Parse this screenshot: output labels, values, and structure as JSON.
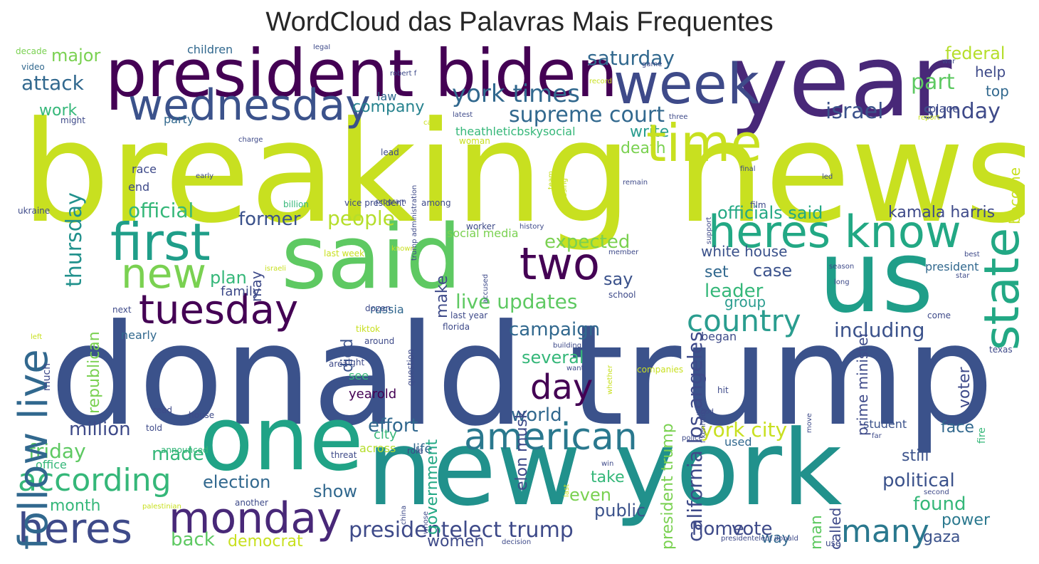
{
  "title": "WordCloud das Palavras Mais Frequentes",
  "palette": [
    "#440154",
    "#482878",
    "#3e4989",
    "#31688e",
    "#26828e",
    "#1f9e89",
    "#35b779",
    "#6ece58",
    "#b5de2b",
    "#fde725"
  ],
  "words": [
    {
      "text": "breaking news",
      "color": "#c8e020",
      "orientation": "horizontal"
    },
    {
      "text": "donald trump",
      "color": "#3b528b",
      "orientation": "horizontal"
    },
    {
      "text": "new york",
      "color": "#21918c",
      "orientation": "horizontal"
    },
    {
      "text": "year",
      "color": "#482878",
      "orientation": "horizontal"
    },
    {
      "text": "president biden",
      "color": "#440154",
      "orientation": "horizontal"
    },
    {
      "text": "said",
      "color": "#5ec962",
      "orientation": "horizontal"
    },
    {
      "text": "us",
      "color": "#1f9e89",
      "orientation": "horizontal"
    },
    {
      "text": "one",
      "color": "#20a386",
      "orientation": "horizontal"
    },
    {
      "text": "week",
      "color": "#3e4a89",
      "orientation": "horizontal"
    },
    {
      "text": "wednesday",
      "color": "#3b528b",
      "orientation": "horizontal"
    },
    {
      "text": "first",
      "color": "#1f9e89",
      "orientation": "horizontal"
    },
    {
      "text": "new",
      "color": "#7ad151",
      "orientation": "horizontal"
    },
    {
      "text": "tuesday",
      "color": "#440154",
      "orientation": "horizontal"
    },
    {
      "text": "two",
      "color": "#440154",
      "orientation": "horizontal"
    },
    {
      "text": "heres know",
      "color": "#22a884",
      "orientation": "horizontal"
    },
    {
      "text": "monday",
      "color": "#482878",
      "orientation": "horizontal"
    },
    {
      "text": "heres",
      "color": "#3e4a89",
      "orientation": "horizontal"
    },
    {
      "text": "american",
      "color": "#2a788e",
      "orientation": "horizontal"
    },
    {
      "text": "according",
      "color": "#35b779",
      "orientation": "horizontal"
    },
    {
      "text": "day",
      "color": "#440154",
      "orientation": "horizontal"
    },
    {
      "text": "country",
      "color": "#2a9d8f",
      "orientation": "horizontal"
    },
    {
      "text": "many",
      "color": "#2a788e",
      "orientation": "horizontal"
    },
    {
      "text": "york times",
      "color": "#31688e",
      "orientation": "horizontal"
    },
    {
      "text": "supreme court",
      "color": "#31688e",
      "orientation": "horizontal"
    },
    {
      "text": "israel",
      "color": "#3b528b",
      "orientation": "horizontal"
    },
    {
      "text": "sunday",
      "color": "#3e4a89",
      "orientation": "horizontal"
    },
    {
      "text": "saturday",
      "color": "#31688e",
      "orientation": "horizontal"
    },
    {
      "text": "attack",
      "color": "#31688e",
      "orientation": "horizontal"
    },
    {
      "text": "major",
      "color": "#7ad151",
      "orientation": "horizontal"
    },
    {
      "text": "federal",
      "color": "#b5de2b",
      "orientation": "horizontal"
    },
    {
      "text": "part",
      "color": "#5ec962",
      "orientation": "horizontal"
    },
    {
      "text": "help",
      "color": "#3e4a89",
      "orientation": "horizontal"
    },
    {
      "text": "top",
      "color": "#31688e",
      "orientation": "horizontal"
    },
    {
      "text": "company",
      "color": "#26828e",
      "orientation": "horizontal"
    },
    {
      "text": "work",
      "color": "#35b779",
      "orientation": "horizontal"
    },
    {
      "text": "write",
      "color": "#2a9d8f",
      "orientation": "horizontal"
    },
    {
      "text": "death",
      "color": "#7ad151",
      "orientation": "horizontal"
    },
    {
      "text": "former",
      "color": "#3b528b",
      "orientation": "horizontal"
    },
    {
      "text": "people",
      "color": "#b5de2b",
      "orientation": "horizontal"
    },
    {
      "text": "official",
      "color": "#35b779",
      "orientation": "horizontal"
    },
    {
      "text": "officials said",
      "color": "#22a884",
      "orientation": "horizontal"
    },
    {
      "text": "kamala harris",
      "color": "#3e4a89",
      "orientation": "horizontal"
    },
    {
      "text": "expected",
      "color": "#7ad151",
      "orientation": "horizontal"
    },
    {
      "text": "white house",
      "color": "#3b528b",
      "orientation": "horizontal"
    },
    {
      "text": "case",
      "color": "#3b528b",
      "orientation": "horizontal"
    },
    {
      "text": "set",
      "color": "#31688e",
      "orientation": "horizontal"
    },
    {
      "text": "leader",
      "color": "#35b779",
      "orientation": "horizontal"
    },
    {
      "text": "group",
      "color": "#2a9d8f",
      "orientation": "horizontal"
    },
    {
      "text": "say",
      "color": "#3b528b",
      "orientation": "horizontal"
    },
    {
      "text": "plan",
      "color": "#35b779",
      "orientation": "horizontal"
    },
    {
      "text": "family",
      "color": "#3e4a89",
      "orientation": "horizontal"
    },
    {
      "text": "live updates",
      "color": "#5ec962",
      "orientation": "horizontal"
    },
    {
      "text": "campaign",
      "color": "#31688e",
      "orientation": "horizontal"
    },
    {
      "text": "including",
      "color": "#3b528b",
      "orientation": "horizontal"
    },
    {
      "text": "several",
      "color": "#35b779",
      "orientation": "horizontal"
    },
    {
      "text": "world",
      "color": "#31688e",
      "orientation": "horizontal"
    },
    {
      "text": "million",
      "color": "#3e4a89",
      "orientation": "horizontal"
    },
    {
      "text": "effort",
      "color": "#31688e",
      "orientation": "horizontal"
    },
    {
      "text": "york city",
      "color": "#c8e020",
      "orientation": "horizontal"
    },
    {
      "text": "face",
      "color": "#31688e",
      "orientation": "horizontal"
    },
    {
      "text": "friday",
      "color": "#5ec962",
      "orientation": "horizontal"
    },
    {
      "text": "made",
      "color": "#35b779",
      "orientation": "horizontal"
    },
    {
      "text": "election",
      "color": "#31688e",
      "orientation": "horizontal"
    },
    {
      "text": "show",
      "color": "#31688e",
      "orientation": "horizontal"
    },
    {
      "text": "month",
      "color": "#35b779",
      "orientation": "horizontal"
    },
    {
      "text": "take",
      "color": "#35b779",
      "orientation": "horizontal"
    },
    {
      "text": "even",
      "color": "#7ad151",
      "orientation": "horizontal"
    },
    {
      "text": "public",
      "color": "#3b528b",
      "orientation": "horizontal"
    },
    {
      "text": "political",
      "color": "#3b528b",
      "orientation": "horizontal"
    },
    {
      "text": "found",
      "color": "#35b779",
      "orientation": "horizontal"
    },
    {
      "text": "still",
      "color": "#3b528b",
      "orientation": "horizontal"
    },
    {
      "text": "power",
      "color": "#2a788e",
      "orientation": "horizontal"
    },
    {
      "text": "gaza",
      "color": "#3b528b",
      "orientation": "horizontal"
    },
    {
      "text": "presidentelect trump",
      "color": "#3e4a89",
      "orientation": "horizontal"
    },
    {
      "text": "back",
      "color": "#5ec962",
      "orientation": "horizontal"
    },
    {
      "text": "democrat",
      "color": "#c8e020",
      "orientation": "horizontal"
    },
    {
      "text": "women",
      "color": "#3e4a89",
      "orientation": "horizontal"
    },
    {
      "text": "home",
      "color": "#3e4a89",
      "orientation": "horizontal"
    },
    {
      "text": "vote",
      "color": "#3e4a89",
      "orientation": "horizontal"
    },
    {
      "text": "way",
      "color": "#31688e",
      "orientation": "horizontal"
    },
    {
      "text": "end",
      "color": "#3e4a89",
      "orientation": "horizontal"
    },
    {
      "text": "race",
      "color": "#3e4a89",
      "orientation": "horizontal"
    },
    {
      "text": "party",
      "color": "#31688e",
      "orientation": "horizontal"
    },
    {
      "text": "social media",
      "color": "#7ad151",
      "orientation": "horizontal"
    },
    {
      "text": "yearold",
      "color": "#440154",
      "orientation": "horizontal"
    },
    {
      "text": "see",
      "color": "#35b779",
      "orientation": "horizontal"
    },
    {
      "text": "city",
      "color": "#35b779",
      "orientation": "horizontal"
    },
    {
      "text": "across",
      "color": "#b5de2b",
      "orientation": "horizontal"
    },
    {
      "text": "life",
      "color": "#31688e",
      "orientation": "horizontal"
    },
    {
      "text": "russia",
      "color": "#31688e",
      "orientation": "horizontal"
    },
    {
      "text": "office",
      "color": "#35b779",
      "orientation": "horizontal"
    },
    {
      "text": "nearly",
      "color": "#31688e",
      "orientation": "horizontal"
    },
    {
      "text": "theathleticbskysocial",
      "color": "#35b779",
      "orientation": "horizontal"
    },
    {
      "text": "law",
      "color": "#31688e",
      "orientation": "horizontal"
    },
    {
      "text": "children",
      "color": "#31688e",
      "orientation": "horizontal"
    },
    {
      "text": "student",
      "color": "#3b528b",
      "orientation": "horizontal"
    },
    {
      "text": "used",
      "color": "#31688e",
      "orientation": "horizontal"
    },
    {
      "text": "president",
      "color": "#31688e",
      "orientation": "horizontal"
    },
    {
      "text": "decade",
      "color": "#7ad151",
      "orientation": "horizontal"
    },
    {
      "text": "video",
      "color": "#31688e",
      "orientation": "horizontal"
    },
    {
      "text": "might",
      "color": "#3e4a89",
      "orientation": "horizontal"
    },
    {
      "text": "legal",
      "color": "#3e4a89",
      "orientation": "horizontal"
    },
    {
      "text": "robert f",
      "color": "#3e4a89",
      "orientation": "horizontal"
    },
    {
      "text": "record",
      "color": "#c8e020",
      "orientation": "horizontal"
    },
    {
      "text": "game",
      "color": "#3e4a89",
      "orientation": "horizontal"
    },
    {
      "text": "war",
      "color": "#3e4a89",
      "orientation": "horizontal"
    },
    {
      "text": "place",
      "color": "#3e4a89",
      "orientation": "horizontal"
    },
    {
      "text": "report",
      "color": "#c8e020",
      "orientation": "horizontal"
    },
    {
      "text": "latest",
      "color": "#3e4a89",
      "orientation": "horizontal"
    },
    {
      "text": "call",
      "color": "#c8e020",
      "orientation": "horizontal"
    },
    {
      "text": "three",
      "color": "#3e4a89",
      "orientation": "horizontal"
    },
    {
      "text": "woman",
      "color": "#c8e020",
      "orientation": "horizontal"
    },
    {
      "text": "charge",
      "color": "#3e4a89",
      "orientation": "horizontal"
    },
    {
      "text": "lead",
      "color": "#3e4a89",
      "orientation": "horizontal"
    },
    {
      "text": "early",
      "color": "#3e4a89",
      "orientation": "horizontal"
    },
    {
      "text": "remain",
      "color": "#3e4a89",
      "orientation": "horizontal"
    },
    {
      "text": "final",
      "color": "#3e4a89",
      "orientation": "horizontal"
    },
    {
      "text": "led",
      "color": "#3e4a89",
      "orientation": "horizontal"
    },
    {
      "text": "ukraine",
      "color": "#3e4a89",
      "orientation": "horizontal"
    },
    {
      "text": "billion",
      "color": "#35b779",
      "orientation": "horizontal"
    },
    {
      "text": "vice president",
      "color": "#3e4a89",
      "orientation": "horizontal"
    },
    {
      "text": "program",
      "color": "#3e4a89",
      "orientation": "horizontal"
    },
    {
      "text": "among",
      "color": "#3e4a89",
      "orientation": "horizontal"
    },
    {
      "text": "film",
      "color": "#3e4a89",
      "orientation": "horizontal"
    },
    {
      "text": "worker",
      "color": "#3e4a89",
      "orientation": "horizontal"
    },
    {
      "text": "history",
      "color": "#3e4a89",
      "orientation": "horizontal"
    },
    {
      "text": "last week",
      "color": "#c8e020",
      "orientation": "horizontal"
    },
    {
      "text": "known",
      "color": "#c8e020",
      "orientation": "horizontal"
    },
    {
      "text": "member",
      "color": "#3e4a89",
      "orientation": "horizontal"
    },
    {
      "text": "israeli",
      "color": "#c8e020",
      "orientation": "horizontal"
    },
    {
      "text": "school",
      "color": "#3e4a89",
      "orientation": "horizontal"
    },
    {
      "text": "season",
      "color": "#3e4a89",
      "orientation": "horizontal"
    },
    {
      "text": "long",
      "color": "#3e4a89",
      "orientation": "horizontal"
    },
    {
      "text": "best",
      "color": "#3e4a89",
      "orientation": "horizontal"
    },
    {
      "text": "star",
      "color": "#3e4a89",
      "orientation": "horizontal"
    },
    {
      "text": "next",
      "color": "#3e4a89",
      "orientation": "horizontal"
    },
    {
      "text": "left",
      "color": "#c8e020",
      "orientation": "horizontal"
    },
    {
      "text": "dozen",
      "color": "#3e4a89",
      "orientation": "horizontal"
    },
    {
      "text": "last year",
      "color": "#3e4a89",
      "orientation": "horizontal"
    },
    {
      "text": "florida",
      "color": "#3e4a89",
      "orientation": "horizontal"
    },
    {
      "text": "tiktok",
      "color": "#c8e020",
      "orientation": "horizontal"
    },
    {
      "text": "around",
      "color": "#3e4a89",
      "orientation": "horizontal"
    },
    {
      "text": "building",
      "color": "#3e4a89",
      "orientation": "horizontal"
    },
    {
      "text": "began",
      "color": "#3e4a89",
      "orientation": "horizontal"
    },
    {
      "text": "come",
      "color": "#3e4a89",
      "orientation": "horizontal"
    },
    {
      "text": "texas",
      "color": "#3e4a89",
      "orientation": "horizontal"
    },
    {
      "text": "read",
      "color": "#3e4a89",
      "orientation": "horizontal"
    },
    {
      "text": "area",
      "color": "#3e4a89",
      "orientation": "horizontal"
    },
    {
      "text": "right",
      "color": "#3e4a89",
      "orientation": "horizontal"
    },
    {
      "text": "want",
      "color": "#3e4a89",
      "orientation": "horizontal"
    },
    {
      "text": "companies",
      "color": "#c8e020",
      "orientation": "horizontal"
    },
    {
      "text": "told",
      "color": "#3e4a89",
      "orientation": "horizontal"
    },
    {
      "text": "role",
      "color": "#3e4a89",
      "orientation": "horizontal"
    },
    {
      "text": "hit",
      "color": "#3e4a89",
      "orientation": "horizontal"
    },
    {
      "text": "house",
      "color": "#3e4a89",
      "orientation": "horizontal"
    },
    {
      "text": "good",
      "color": "#3e4a89",
      "orientation": "horizontal"
    },
    {
      "text": "announced",
      "color": "#35b779",
      "orientation": "horizontal"
    },
    {
      "text": "police",
      "color": "#3e4a89",
      "orientation": "horizontal"
    },
    {
      "text": "far",
      "color": "#3e4a89",
      "orientation": "horizontal"
    },
    {
      "text": "threat",
      "color": "#3e4a89",
      "orientation": "horizontal"
    },
    {
      "text": "win",
      "color": "#3e4a89",
      "orientation": "horizontal"
    },
    {
      "text": "second",
      "color": "#3e4a89",
      "orientation": "horizontal"
    },
    {
      "text": "another",
      "color": "#3e4a89",
      "orientation": "horizontal"
    },
    {
      "text": "palestinian",
      "color": "#c8e020",
      "orientation": "horizontal"
    },
    {
      "text": "decision",
      "color": "#3e4a89",
      "orientation": "horizontal"
    },
    {
      "text": "presidentelect donald",
      "color": "#3e4a89",
      "orientation": "horizontal"
    },
    {
      "text": "use",
      "color": "#3e4a89",
      "orientation": "horizontal"
    },
    {
      "text": "time",
      "color": "#c8e020",
      "orientation": "horizontal"
    },
    {
      "text": "state",
      "color": "#22a884",
      "orientation": "vertical"
    },
    {
      "text": "follow live",
      "color": "#31688e",
      "orientation": "vertical"
    },
    {
      "text": "thursday",
      "color": "#21918c",
      "orientation": "vertical"
    },
    {
      "text": "republican",
      "color": "#7ad151",
      "orientation": "vertical"
    },
    {
      "text": "california los angeles",
      "color": "#3e4a89",
      "orientation": "vertical"
    },
    {
      "text": "president trump",
      "color": "#7ad151",
      "orientation": "vertical"
    },
    {
      "text": "government",
      "color": "#22a884",
      "orientation": "vertical"
    },
    {
      "text": "elon musk",
      "color": "#3e4a89",
      "orientation": "vertical"
    },
    {
      "text": "make",
      "color": "#3e4a89",
      "orientation": "vertical"
    },
    {
      "text": "died",
      "color": "#3b528b",
      "orientation": "vertical"
    },
    {
      "text": "may",
      "color": "#3e4a89",
      "orientation": "vertical"
    },
    {
      "text": "man",
      "color": "#5ec962",
      "orientation": "vertical"
    },
    {
      "text": "called",
      "color": "#3e4a89",
      "orientation": "vertical"
    },
    {
      "text": "prime minister",
      "color": "#3e4a89",
      "orientation": "vertical"
    },
    {
      "text": "voter",
      "color": "#3e4a89",
      "orientation": "vertical"
    },
    {
      "text": "become",
      "color": "#c8e020",
      "orientation": "vertical"
    },
    {
      "text": "fire",
      "color": "#35b779",
      "orientation": "vertical"
    },
    {
      "text": "question",
      "color": "#3e4a89",
      "orientation": "vertical"
    },
    {
      "text": "much",
      "color": "#3e4a89",
      "orientation": "vertical"
    },
    {
      "text": "support",
      "color": "#3e4a89",
      "orientation": "vertical"
    },
    {
      "text": "trump administration",
      "color": "#3e4a89",
      "orientation": "vertical"
    },
    {
      "text": "using",
      "color": "#c8e020",
      "orientation": "vertical"
    },
    {
      "text": "team",
      "color": "#c8e020",
      "orientation": "vertical"
    },
    {
      "text": "whether",
      "color": "#c8e020",
      "orientation": "vertical"
    },
    {
      "text": "accused",
      "color": "#3e4a89",
      "orientation": "vertical"
    },
    {
      "text": "move",
      "color": "#3e4a89",
      "orientation": "vertical"
    },
    {
      "text": "f kennedy",
      "color": "#3e4a89",
      "orientation": "vertical"
    },
    {
      "text": "china",
      "color": "#3e4a89",
      "orientation": "vertical"
    },
    {
      "text": "whose",
      "color": "#3e4a89",
      "orientation": "vertical"
    },
    {
      "text": "last",
      "color": "#c8e020",
      "orientation": "vertical"
    },
    {
      "text": "hour",
      "color": "#c8e020",
      "orientation": "vertical"
    }
  ]
}
